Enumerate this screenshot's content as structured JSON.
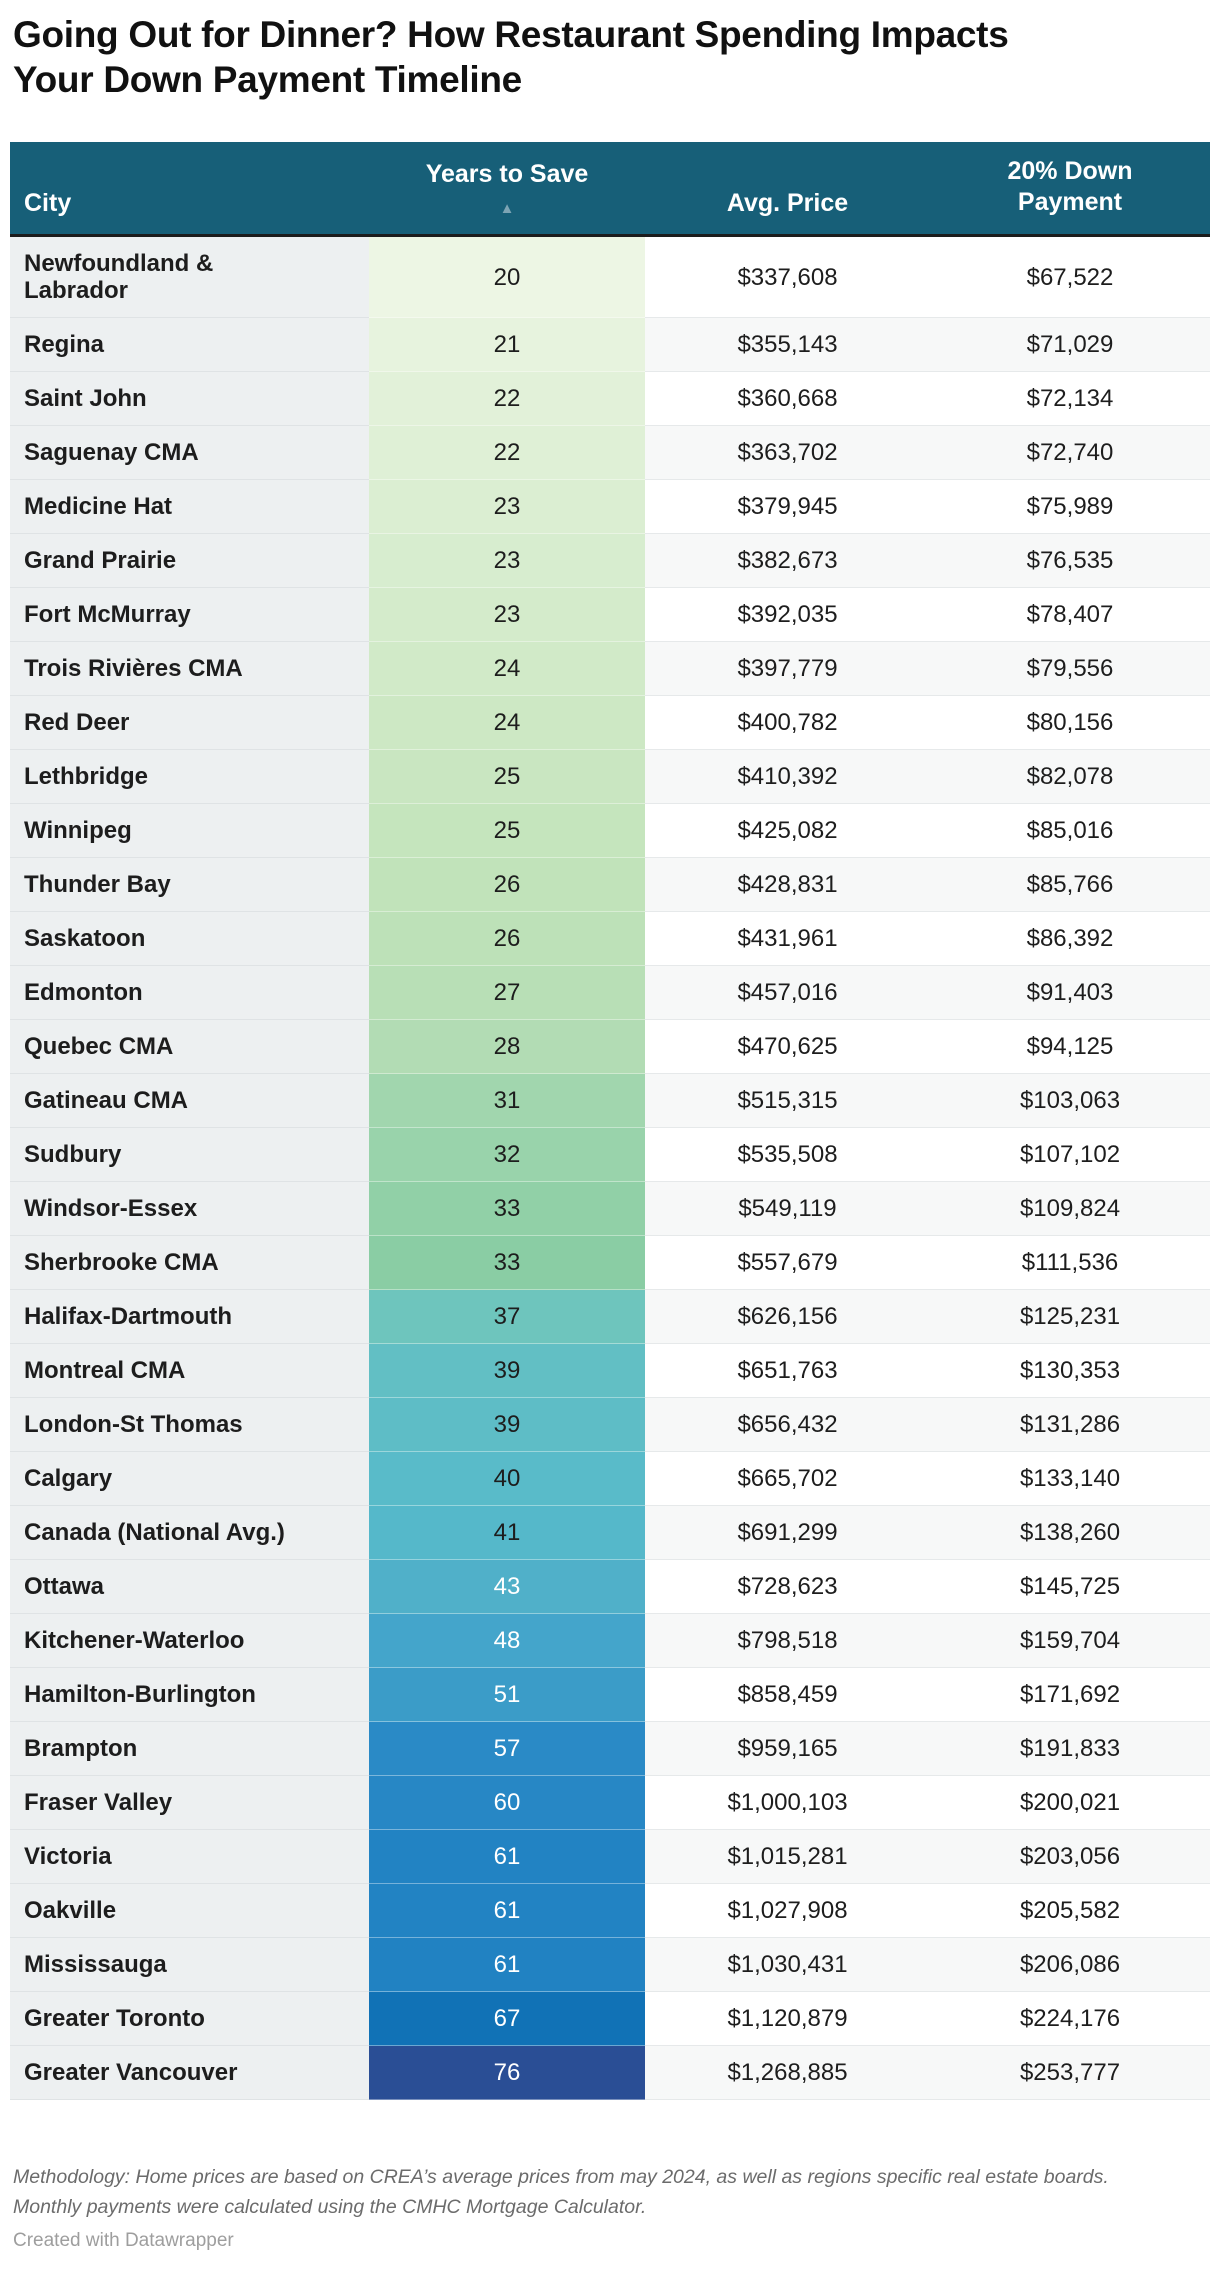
{
  "title": "Going Out for Dinner? How Restaurant Spending Impacts Your Down Payment Timeline",
  "colors": {
    "header_bg": "#175f78",
    "header_text": "#ffffff",
    "header_border": "#1c1c1c",
    "sort_arrow": "#7da4b4",
    "city_column_bg": "#edf0f1",
    "row_stripe": "#f7f8f8",
    "dark_text": "#1d1d1d",
    "scale_min_color": "#edf6e4",
    "scale_max_color": "#2a4e95"
  },
  "chart_data": {
    "type": "table",
    "title": "Going Out for Dinner? How Restaurant Spending Impacts Your Down Payment Timeline",
    "columns": {
      "city": "City",
      "years": "Years to Save",
      "price": "Avg. Price",
      "down": "20% Down Payment"
    },
    "sort": {
      "column": "Years to Save",
      "direction": "ascending",
      "icon": "▲"
    },
    "rows": [
      {
        "city": "Newfoundland & Labrador",
        "years": "20",
        "avg_price": "$337,608",
        "down_payment": "$67,522",
        "cell_color": "#edf6e4",
        "text_color": "dark"
      },
      {
        "city": "Regina",
        "years": "21",
        "avg_price": "$355,143",
        "down_payment": "$71,029",
        "cell_color": "#e7f3de",
        "text_color": "dark"
      },
      {
        "city": "Saint John",
        "years": "22",
        "avg_price": "$360,668",
        "down_payment": "$72,134",
        "cell_color": "#e2f1d9",
        "text_color": "dark"
      },
      {
        "city": "Saguenay CMA",
        "years": "22",
        "avg_price": "$363,702",
        "down_payment": "$72,740",
        "cell_color": "#dff0d6",
        "text_color": "dark"
      },
      {
        "city": "Medicine Hat",
        "years": "23",
        "avg_price": "$379,945",
        "down_payment": "$75,989",
        "cell_color": "#dbeed2",
        "text_color": "dark"
      },
      {
        "city": "Grand Prairie",
        "years": "23",
        "avg_price": "$382,673",
        "down_payment": "$76,535",
        "cell_color": "#d7edcf",
        "text_color": "dark"
      },
      {
        "city": "Fort McMurray",
        "years": "23",
        "avg_price": "$392,035",
        "down_payment": "$78,407",
        "cell_color": "#d4ebcb",
        "text_color": "dark"
      },
      {
        "city": "Trois Rivières CMA",
        "years": "24",
        "avg_price": "$397,779",
        "down_payment": "$79,556",
        "cell_color": "#d1eac8",
        "text_color": "dark"
      },
      {
        "city": "Red Deer",
        "years": "24",
        "avg_price": "$400,782",
        "down_payment": "$80,156",
        "cell_color": "#cde8c4",
        "text_color": "dark"
      },
      {
        "city": "Lethbridge",
        "years": "25",
        "avg_price": "$410,392",
        "down_payment": "$82,078",
        "cell_color": "#c9e6c1",
        "text_color": "dark"
      },
      {
        "city": "Winnipeg",
        "years": "25",
        "avg_price": "$425,082",
        "down_payment": "$85,016",
        "cell_color": "#c5e5bd",
        "text_color": "dark"
      },
      {
        "city": "Thunder Bay",
        "years": "26",
        "avg_price": "$428,831",
        "down_payment": "$85,766",
        "cell_color": "#c1e3ba",
        "text_color": "dark"
      },
      {
        "city": "Saskatoon",
        "years": "26",
        "avg_price": "$431,961",
        "down_payment": "$86,392",
        "cell_color": "#bde1b8",
        "text_color": "dark"
      },
      {
        "city": "Edmonton",
        "years": "27",
        "avg_price": "$457,016",
        "down_payment": "$91,403",
        "cell_color": "#b8dfb6",
        "text_color": "dark"
      },
      {
        "city": "Quebec CMA",
        "years": "28",
        "avg_price": "$470,625",
        "down_payment": "$94,125",
        "cell_color": "#b2dcb4",
        "text_color": "dark"
      },
      {
        "city": "Gatineau CMA",
        "years": "31",
        "avg_price": "$515,315",
        "down_payment": "$103,063",
        "cell_color": "#a1d6ae",
        "text_color": "dark"
      },
      {
        "city": "Sudbury",
        "years": "32",
        "avg_price": "$535,508",
        "down_payment": "$107,102",
        "cell_color": "#99d3ab",
        "text_color": "dark"
      },
      {
        "city": "Windsor-Essex",
        "years": "33",
        "avg_price": "$549,119",
        "down_payment": "$109,824",
        "cell_color": "#91d0a7",
        "text_color": "dark"
      },
      {
        "city": "Sherbrooke CMA",
        "years": "33",
        "avg_price": "$557,679",
        "down_payment": "$111,536",
        "cell_color": "#8acda4",
        "text_color": "dark"
      },
      {
        "city": "Halifax-Dartmouth",
        "years": "37",
        "avg_price": "$626,156",
        "down_payment": "$125,231",
        "cell_color": "#6ec5bd",
        "text_color": "dark"
      },
      {
        "city": "Montreal CMA",
        "years": "39",
        "avg_price": "$651,763",
        "down_payment": "$130,353",
        "cell_color": "#62bfc4",
        "text_color": "dark"
      },
      {
        "city": "London-St Thomas",
        "years": "39",
        "avg_price": "$656,432",
        "down_payment": "$131,286",
        "cell_color": "#5ebdc6",
        "text_color": "dark"
      },
      {
        "city": "Calgary",
        "years": "40",
        "avg_price": "$665,702",
        "down_payment": "$133,140",
        "cell_color": "#59bbc9",
        "text_color": "dark"
      },
      {
        "city": "Canada (National Avg.)",
        "years": "41",
        "avg_price": "$691,299",
        "down_payment": "$138,260",
        "cell_color": "#55b8ca",
        "text_color": "dark"
      },
      {
        "city": "Ottawa",
        "years": "43",
        "avg_price": "$728,623",
        "down_payment": "$145,725",
        "cell_color": "#50b0c9",
        "text_color": "white"
      },
      {
        "city": "Kitchener-Waterloo",
        "years": "48",
        "avg_price": "$798,518",
        "down_payment": "$159,704",
        "cell_color": "#44a5cb",
        "text_color": "white"
      },
      {
        "city": "Hamilton-Burlington",
        "years": "51",
        "avg_price": "$858,459",
        "down_payment": "$171,692",
        "cell_color": "#3b9cc8",
        "text_color": "white"
      },
      {
        "city": "Brampton",
        "years": "57",
        "avg_price": "$959,165",
        "down_payment": "$191,833",
        "cell_color": "#2a8ac6",
        "text_color": "white"
      },
      {
        "city": "Fraser Valley",
        "years": "60",
        "avg_price": "$1,000,103",
        "down_payment": "$200,021",
        "cell_color": "#2787c5",
        "text_color": "white"
      },
      {
        "city": "Victoria",
        "years": "61",
        "avg_price": "$1,015,281",
        "down_payment": "$203,056",
        "cell_color": "#2283c3",
        "text_color": "white"
      },
      {
        "city": "Oakville",
        "years": "61",
        "avg_price": "$1,027,908",
        "down_payment": "$205,582",
        "cell_color": "#2283c3",
        "text_color": "white"
      },
      {
        "city": "Mississauga",
        "years": "61",
        "avg_price": "$1,030,431",
        "down_payment": "$206,086",
        "cell_color": "#2182c2",
        "text_color": "white"
      },
      {
        "city": "Greater Toronto",
        "years": "67",
        "avg_price": "$1,120,879",
        "down_payment": "$224,176",
        "cell_color": "#1172b6",
        "text_color": "white"
      },
      {
        "city": "Greater Vancouver",
        "years": "76",
        "avg_price": "$1,268,885",
        "down_payment": "$253,777",
        "cell_color": "#2a4e95",
        "text_color": "white"
      }
    ]
  },
  "footer": {
    "methodology": "Methodology: Home prices are based on CREA’s average prices from may 2024, as well as regions specific real estate boards. Monthly payments were calculated using the CMHC Mortgage Calculator.",
    "attribution": "Created with Datawrapper"
  }
}
